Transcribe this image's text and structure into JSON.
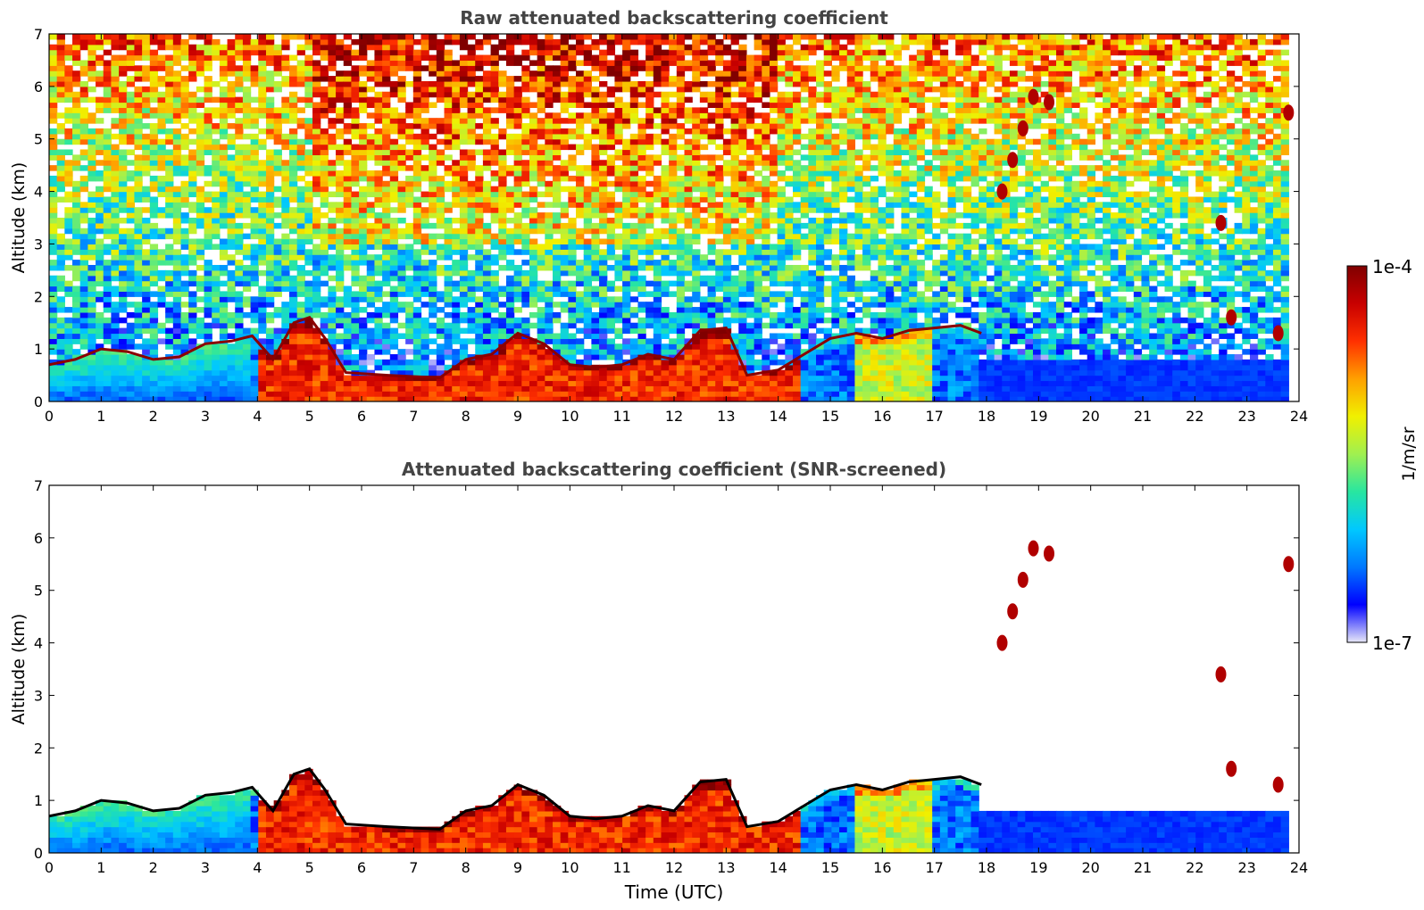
{
  "chart_data": [
    {
      "type": "heatmap",
      "title": "Raw attenuated backscattering coefficient",
      "xlabel": "",
      "ylabel": "Altitude (km)",
      "xlim": [
        0,
        24
      ],
      "ylim": [
        0,
        7
      ],
      "x_ticks": [
        "0",
        "1",
        "2",
        "3",
        "4",
        "5",
        "6",
        "7",
        "8",
        "9",
        "10",
        "11",
        "12",
        "13",
        "14",
        "15",
        "16",
        "17",
        "18",
        "19",
        "20",
        "21",
        "22",
        "23",
        "24"
      ],
      "y_ticks": [
        "0",
        "1",
        "2",
        "3",
        "4",
        "5",
        "6",
        "7"
      ],
      "data_end_hour": 23.8,
      "boundary_layer_top_km": [
        {
          "x": 0,
          "y": 0.7
        },
        {
          "x": 0.5,
          "y": 0.8
        },
        {
          "x": 1,
          "y": 1.0
        },
        {
          "x": 1.5,
          "y": 0.95
        },
        {
          "x": 2,
          "y": 0.8
        },
        {
          "x": 2.5,
          "y": 0.85
        },
        {
          "x": 3,
          "y": 1.1
        },
        {
          "x": 3.5,
          "y": 1.15
        },
        {
          "x": 3.9,
          "y": 1.25
        },
        {
          "x": 4.3,
          "y": 0.8
        },
        {
          "x": 4.7,
          "y": 1.5
        },
        {
          "x": 5,
          "y": 1.6
        },
        {
          "x": 5.3,
          "y": 1.2
        },
        {
          "x": 5.7,
          "y": 0.55
        },
        {
          "x": 6.5,
          "y": 0.5
        },
        {
          "x": 7.5,
          "y": 0.45
        },
        {
          "x": 8,
          "y": 0.8
        },
        {
          "x": 8.5,
          "y": 0.9
        },
        {
          "x": 9,
          "y": 1.3
        },
        {
          "x": 9.5,
          "y": 1.1
        },
        {
          "x": 10,
          "y": 0.7
        },
        {
          "x": 10.5,
          "y": 0.65
        },
        {
          "x": 11,
          "y": 0.7
        },
        {
          "x": 11.5,
          "y": 0.9
        },
        {
          "x": 12,
          "y": 0.8
        },
        {
          "x": 12.5,
          "y": 1.35
        },
        {
          "x": 13,
          "y": 1.4
        },
        {
          "x": 13.4,
          "y": 0.5
        },
        {
          "x": 14,
          "y": 0.6
        },
        {
          "x": 14.5,
          "y": 0.9
        },
        {
          "x": 15,
          "y": 1.2
        },
        {
          "x": 15.5,
          "y": 1.3
        },
        {
          "x": 16,
          "y": 1.2
        },
        {
          "x": 16.5,
          "y": 1.35
        },
        {
          "x": 17,
          "y": 1.4
        },
        {
          "x": 17.5,
          "y": 1.45
        },
        {
          "x": 17.9,
          "y": 1.3
        }
      ],
      "elevated_cloud_layers": [
        {
          "x": 18.3,
          "y": 4.0
        },
        {
          "x": 18.5,
          "y": 4.6
        },
        {
          "x": 18.7,
          "y": 5.2
        },
        {
          "x": 18.9,
          "y": 5.8
        },
        {
          "x": 19.2,
          "y": 5.7
        },
        {
          "x": 22.5,
          "y": 3.4
        },
        {
          "x": 22.7,
          "y": 1.6
        },
        {
          "x": 23.6,
          "y": 1.3
        },
        {
          "x": 23.8,
          "y": 5.5
        }
      ]
    },
    {
      "type": "heatmap",
      "title": "Attenuated backscattering coefficient (SNR-screened)",
      "xlabel": "Time (UTC)",
      "ylabel": "Altitude (km)",
      "xlim": [
        0,
        24
      ],
      "ylim": [
        0,
        7
      ],
      "x_ticks": [
        "0",
        "1",
        "2",
        "3",
        "4",
        "5",
        "6",
        "7",
        "8",
        "9",
        "10",
        "11",
        "12",
        "13",
        "14",
        "15",
        "16",
        "17",
        "18",
        "19",
        "20",
        "21",
        "22",
        "23",
        "24"
      ],
      "y_ticks": [
        "0",
        "1",
        "2",
        "3",
        "4",
        "5",
        "6",
        "7"
      ],
      "data_end_hour": 23.8,
      "boundary_layer_top_km": [
        {
          "x": 0,
          "y": 0.7
        },
        {
          "x": 0.5,
          "y": 0.8
        },
        {
          "x": 1,
          "y": 1.0
        },
        {
          "x": 1.5,
          "y": 0.95
        },
        {
          "x": 2,
          "y": 0.8
        },
        {
          "x": 2.5,
          "y": 0.85
        },
        {
          "x": 3,
          "y": 1.1
        },
        {
          "x": 3.5,
          "y": 1.15
        },
        {
          "x": 3.9,
          "y": 1.25
        },
        {
          "x": 4.3,
          "y": 0.8
        },
        {
          "x": 4.7,
          "y": 1.5
        },
        {
          "x": 5,
          "y": 1.6
        },
        {
          "x": 5.3,
          "y": 1.2
        },
        {
          "x": 5.7,
          "y": 0.55
        },
        {
          "x": 6.5,
          "y": 0.5
        },
        {
          "x": 7.5,
          "y": 0.45
        },
        {
          "x": 8,
          "y": 0.8
        },
        {
          "x": 8.5,
          "y": 0.9
        },
        {
          "x": 9,
          "y": 1.3
        },
        {
          "x": 9.5,
          "y": 1.1
        },
        {
          "x": 10,
          "y": 0.7
        },
        {
          "x": 10.5,
          "y": 0.65
        },
        {
          "x": 11,
          "y": 0.7
        },
        {
          "x": 11.5,
          "y": 0.9
        },
        {
          "x": 12,
          "y": 0.8
        },
        {
          "x": 12.5,
          "y": 1.35
        },
        {
          "x": 13,
          "y": 1.4
        },
        {
          "x": 13.4,
          "y": 0.5
        },
        {
          "x": 14,
          "y": 0.6
        },
        {
          "x": 14.5,
          "y": 0.9
        },
        {
          "x": 15,
          "y": 1.2
        },
        {
          "x": 15.5,
          "y": 1.3
        },
        {
          "x": 16,
          "y": 1.2
        },
        {
          "x": 16.5,
          "y": 1.35
        },
        {
          "x": 17,
          "y": 1.4
        },
        {
          "x": 17.5,
          "y": 1.45
        },
        {
          "x": 17.9,
          "y": 1.3
        }
      ],
      "elevated_cloud_layers": [
        {
          "x": 18.3,
          "y": 4.0
        },
        {
          "x": 18.5,
          "y": 4.6
        },
        {
          "x": 18.7,
          "y": 5.2
        },
        {
          "x": 18.9,
          "y": 5.8
        },
        {
          "x": 19.2,
          "y": 5.7
        },
        {
          "x": 22.5,
          "y": 3.4
        },
        {
          "x": 22.7,
          "y": 1.6
        },
        {
          "x": 23.6,
          "y": 1.3
        },
        {
          "x": 23.8,
          "y": 5.5
        }
      ]
    }
  ],
  "colorbar": {
    "label": "1/m/sr",
    "max_label": "1e-4",
    "min_label": "1e-7",
    "scale": "log",
    "colormap": [
      "#e8e8f8",
      "#0000ff",
      "#0078ff",
      "#00c8ff",
      "#28e6a0",
      "#a0f050",
      "#f0f000",
      "#ffa000",
      "#ff3000",
      "#c80000",
      "#800000"
    ]
  }
}
